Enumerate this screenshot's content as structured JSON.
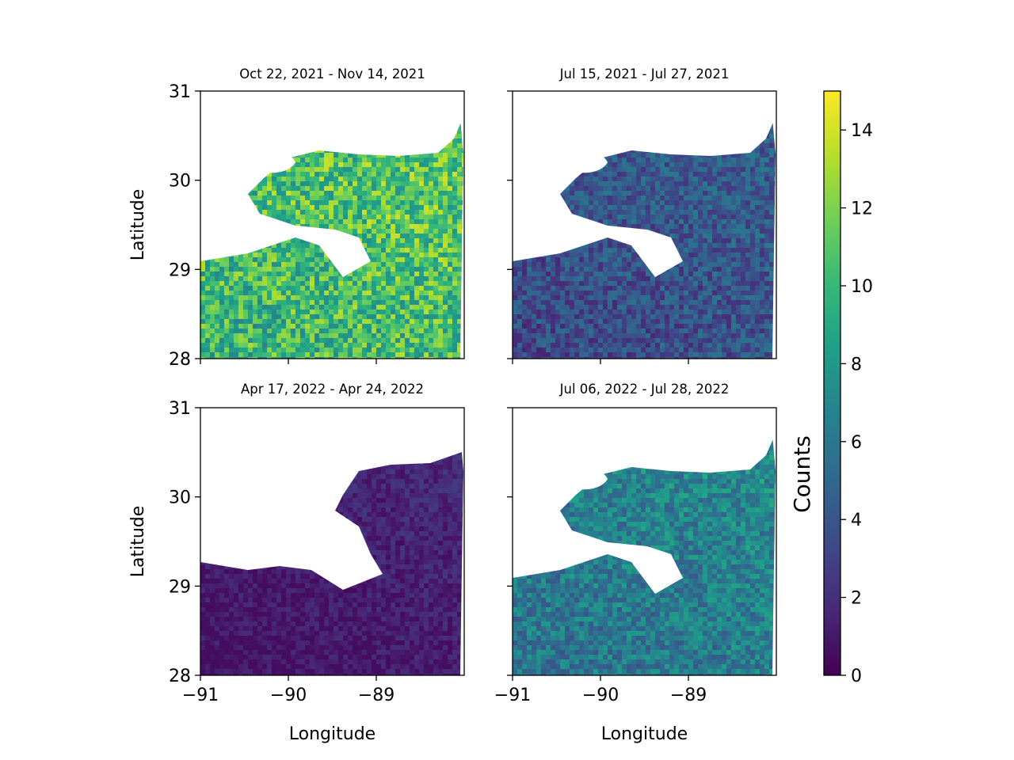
{
  "chart_data": {
    "type": "heatmap",
    "colormap": "viridis",
    "colorbar": {
      "label": "Counts",
      "range": [
        0,
        15
      ],
      "ticks": [
        0,
        2,
        4,
        6,
        8,
        10,
        12,
        14
      ],
      "tick_labels": [
        "0",
        "2",
        "4",
        "6",
        "8",
        "10",
        "12",
        "14"
      ]
    },
    "shared_axes": {
      "xlabel": "Longitude",
      "ylabel": "Latitude",
      "xlim": [
        -91,
        -88
      ],
      "ylim": [
        28,
        31
      ],
      "xticks": [
        -91,
        -90,
        -89
      ],
      "xtick_labels": [
        "−91",
        "−90",
        "−89"
      ],
      "yticks": [
        28,
        29,
        30,
        31
      ],
      "ytick_labels": [
        "28",
        "29",
        "30",
        "31"
      ]
    },
    "panels": [
      {
        "title": "Oct 22, 2021 - Nov 14, 2021",
        "typical_value": 10.5,
        "min_value": 6,
        "max_value": 14
      },
      {
        "title": "Jul 15, 2021 - Jul 27, 2021",
        "typical_value": 4,
        "min_value": 1,
        "max_value": 6
      },
      {
        "title": "Apr 17, 2022 - Apr 24, 2022",
        "typical_value": 1.3,
        "min_value": 0.5,
        "max_value": 3
      },
      {
        "title": "Jul 06, 2022 - Jul 28, 2022",
        "typical_value": 6.5,
        "min_value": 4,
        "max_value": 9.5
      }
    ]
  },
  "colors": {
    "viridis_stops": [
      "#440154",
      "#482878",
      "#3e4989",
      "#31688e",
      "#26828e",
      "#1f9e89",
      "#35b779",
      "#6ece58",
      "#b5de2b",
      "#fde725"
    ],
    "land_mask": "#ffffff"
  }
}
